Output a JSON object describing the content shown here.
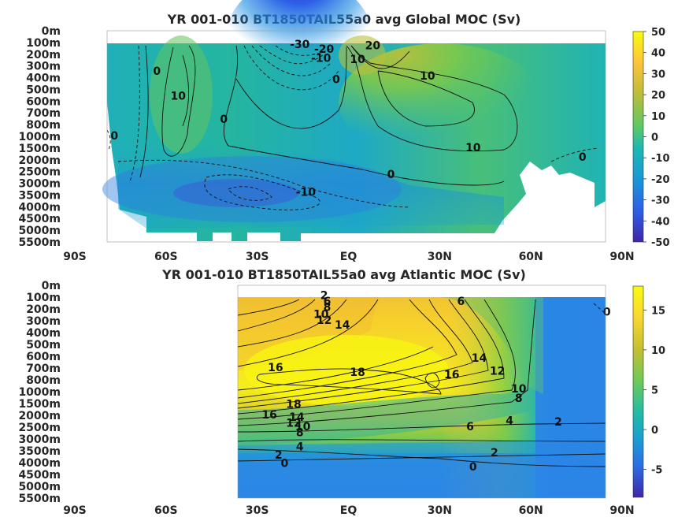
{
  "chart_data": [
    {
      "type": "heatmap",
      "title": "YR 001-010 BT1850TAIL55a0 avg  Global MOC (Sv)",
      "x_ticks": [
        "90S",
        "60S",
        "30S",
        "EQ",
        "30N",
        "60N",
        "90N"
      ],
      "x_values": [
        -90,
        -60,
        -30,
        0,
        30,
        60,
        90
      ],
      "y_ticks": [
        "0m",
        "100m",
        "200m",
        "300m",
        "400m",
        "500m",
        "600m",
        "700m",
        "800m",
        "1000m",
        "1500m",
        "2000m",
        "2500m",
        "3000m",
        "3500m",
        "4000m",
        "4500m",
        "5000m",
        "5500m"
      ],
      "xlim": [
        -90,
        90
      ],
      "colorbar": {
        "ticks": [
          "50",
          "40",
          "30",
          "20",
          "10",
          "0",
          "-10",
          "-20",
          "-30",
          "-40",
          "-50"
        ],
        "range": [
          -50,
          50
        ]
      },
      "contour_labels": [
        {
          "text": "-30",
          "lat": -16,
          "level": 1.2
        },
        {
          "text": "-20",
          "lat": -8,
          "level": 1.6
        },
        {
          "text": "-10",
          "lat": -9,
          "level": 2.4
        },
        {
          "text": "0",
          "lat": -4,
          "level": 4.2
        },
        {
          "text": "10",
          "lat": 3,
          "level": 2.5
        },
        {
          "text": "20",
          "lat": 8,
          "level": 1.3
        },
        {
          "text": "10",
          "lat": 26,
          "level": 3.9
        },
        {
          "text": "0",
          "lat": -63,
          "level": 3.5
        },
        {
          "text": "10",
          "lat": -56,
          "level": 5.6
        },
        {
          "text": "0",
          "lat": -41,
          "level": 7.6
        },
        {
          "text": "0",
          "lat": -77,
          "level": 9.0
        },
        {
          "text": "10",
          "lat": 41,
          "level": 10.0
        },
        {
          "text": "0",
          "lat": 14,
          "level": 12.3
        },
        {
          "text": "-10",
          "lat": -14,
          "level": 13.8
        },
        {
          "text": "0",
          "lat": 77,
          "level": 10.8
        }
      ]
    },
    {
      "type": "heatmap",
      "title": "YR 001-010 BT1850TAIL55a0 avg  Atlantic MOC (Sv)",
      "x_ticks": [
        "90S",
        "60S",
        "30S",
        "EQ",
        "30N",
        "60N",
        "90N"
      ],
      "x_values": [
        -90,
        -60,
        -30,
        0,
        30,
        60,
        90
      ],
      "y_ticks": [
        "0m",
        "100m",
        "200m",
        "300m",
        "400m",
        "500m",
        "600m",
        "700m",
        "800m",
        "1000m",
        "1500m",
        "2000m",
        "2500m",
        "3000m",
        "3500m",
        "4000m",
        "4500m",
        "5000m",
        "5500m"
      ],
      "xlim": [
        -90,
        90
      ],
      "colorbar": {
        "ticks": [
          "15",
          "10",
          "5",
          "0",
          "-5"
        ],
        "range": [
          -8.5,
          18
        ]
      },
      "contour_labels": [
        {
          "text": "2",
          "lat": -8,
          "level": 0.9
        },
        {
          "text": "6",
          "lat": -7,
          "level": 1.4
        },
        {
          "text": "8",
          "lat": -7,
          "level": 1.9
        },
        {
          "text": "10",
          "lat": -9,
          "level": 2.5
        },
        {
          "text": "12",
          "lat": -8,
          "level": 3.0
        },
        {
          "text": "14",
          "lat": -2,
          "level": 3.4
        },
        {
          "text": "6",
          "lat": 37,
          "level": 1.4
        },
        {
          "text": "0",
          "lat": 85,
          "level": 2.3
        },
        {
          "text": "16",
          "lat": -24,
          "level": 7.0
        },
        {
          "text": "18",
          "lat": 3,
          "level": 7.4
        },
        {
          "text": "16",
          "lat": 34,
          "level": 7.6
        },
        {
          "text": "14",
          "lat": 43,
          "level": 6.2
        },
        {
          "text": "12",
          "lat": 49,
          "level": 7.3
        },
        {
          "text": "10",
          "lat": 56,
          "level": 8.8
        },
        {
          "text": "8",
          "lat": 56,
          "level": 9.6
        },
        {
          "text": "18",
          "lat": -18,
          "level": 10.1
        },
        {
          "text": "16",
          "lat": -26,
          "level": 11.0
        },
        {
          "text": "14",
          "lat": -17,
          "level": 11.2
        },
        {
          "text": "12",
          "lat": -18,
          "level": 11.7
        },
        {
          "text": "10",
          "lat": -15,
          "level": 12.0
        },
        {
          "text": "8",
          "lat": -16,
          "level": 12.5
        },
        {
          "text": "6",
          "lat": 40,
          "level": 12.0
        },
        {
          "text": "4",
          "lat": 53,
          "level": 11.5
        },
        {
          "text": "2",
          "lat": 69,
          "level": 11.6
        },
        {
          "text": "4",
          "lat": -16,
          "level": 13.7
        },
        {
          "text": "2",
          "lat": 48,
          "level": 14.2
        },
        {
          "text": "2",
          "lat": -23,
          "level": 14.4
        },
        {
          "text": "0",
          "lat": -21,
          "level": 15.1
        },
        {
          "text": "0",
          "lat": 41,
          "level": 15.4
        }
      ]
    }
  ]
}
